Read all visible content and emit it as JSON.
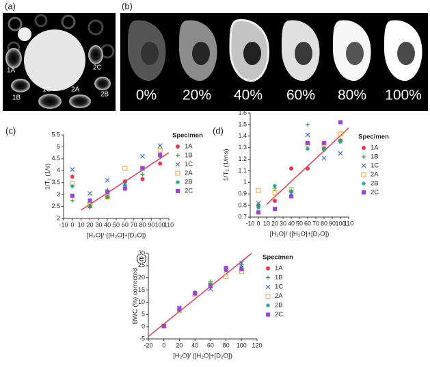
{
  "panels": {
    "a": {
      "label": "(a)",
      "specimens": [
        "1A",
        "1B",
        "1C",
        "2A",
        "2B",
        "2C"
      ]
    },
    "b": {
      "label": "(b)",
      "concentrations": [
        "0%",
        "20%",
        "40%",
        "60%",
        "80%",
        "100%"
      ]
    }
  },
  "chart_data": [
    {
      "type": "scatter",
      "label": "(c)",
      "y_label": "1/T₁ (1/s)",
      "x_label": "[H₂O]/ ([H₂O]+[D₂O])",
      "legend_title": "Specimen",
      "x": [
        0,
        20,
        40,
        60,
        80,
        100
      ],
      "xlim": [
        -10,
        110
      ],
      "xticks": [
        -10,
        0,
        10,
        20,
        30,
        40,
        50,
        60,
        70,
        80,
        90,
        100,
        110
      ],
      "ylim": [
        2,
        5.5
      ],
      "yticks": [
        2,
        2.5,
        3,
        3.5,
        4,
        4.5,
        5,
        5.5
      ],
      "series": [
        {
          "name": "1A",
          "color": "#e8384f",
          "marker": "circle",
          "values": [
            3.75,
            2.5,
            2.9,
            3.55,
            3.65,
            4.3
          ]
        },
        {
          "name": "1B",
          "color": "#2e9e3e",
          "marker": "plus",
          "values": [
            2.75,
            2.45,
            3.2,
            3.3,
            3.85,
            4.7
          ]
        },
        {
          "name": "1C",
          "color": "#3b6fd8",
          "marker": "cross",
          "values": [
            4.05,
            3.05,
            3.6,
            3.45,
            4.6,
            5.05
          ]
        },
        {
          "name": "2A",
          "color": "#f0a030",
          "marker": "open-square",
          "values": [
            3.45,
            2.6,
            2.9,
            4.1,
            4.1,
            4.85
          ]
        },
        {
          "name": "2B",
          "color": "#1aa88c",
          "marker": "asterisk",
          "values": [
            3.35,
            2.55,
            2.9,
            3.4,
            4.1,
            4.6
          ]
        },
        {
          "name": "2C",
          "color": "#a040e0",
          "marker": "square",
          "values": [
            2.95,
            2.75,
            3.1,
            3.25,
            4.1,
            4.65
          ]
        }
      ],
      "fit": {
        "color": "#e8384f",
        "x": [
          10,
          110
        ],
        "y": [
          2.35,
          4.75
        ]
      }
    },
    {
      "type": "scatter",
      "label": "(d)",
      "y_label": "1/T₂ (1/ms)",
      "x_label": "[H₂O]/ ([H₂O]+[D₂O])",
      "legend_title": "Specimen",
      "x": [
        0,
        20,
        40,
        60,
        80,
        100
      ],
      "xlim": [
        -10,
        110
      ],
      "xticks": [
        -10,
        0,
        10,
        20,
        30,
        40,
        50,
        60,
        70,
        80,
        90,
        100,
        110
      ],
      "ylim": [
        0.7,
        1.6
      ],
      "yticks": [
        0.7,
        0.8,
        0.9,
        1,
        1.1,
        1.2,
        1.3,
        1.4,
        1.5,
        1.6
      ],
      "series": [
        {
          "name": "1A",
          "color": "#e8384f",
          "marker": "circle",
          "values": [
            0.8,
            0.84,
            1.12,
            1.12,
            1.29,
            1.36
          ]
        },
        {
          "name": "1B",
          "color": "#2e9e3e",
          "marker": "plus",
          "values": [
            0.8,
            0.95,
            0.93,
            1.5,
            1.3,
            1.37
          ]
        },
        {
          "name": "1C",
          "color": "#3b6fd8",
          "marker": "cross",
          "values": [
            0.82,
            0.77,
            0.9,
            1.41,
            1.21,
            1.25
          ]
        },
        {
          "name": "2A",
          "color": "#f0a030",
          "marker": "open-square",
          "values": [
            0.93,
            0.91,
            0.94,
            1.33,
            1.33,
            1.42
          ]
        },
        {
          "name": "2B",
          "color": "#1aa88c",
          "marker": "asterisk",
          "values": [
            0.78,
            0.97,
            0.92,
            1.29,
            1.28,
            1.35
          ]
        },
        {
          "name": "2C",
          "color": "#a040e0",
          "marker": "square",
          "values": [
            0.74,
            0.77,
            0.88,
            1.34,
            1.34,
            1.52
          ]
        }
      ],
      "fit": {
        "color": "#e8384f",
        "x": [
          10,
          110
        ],
        "y": [
          0.81,
          1.47
        ]
      }
    },
    {
      "type": "scatter",
      "label": "(e)",
      "y_label": "BWC (%) corrected",
      "x_label": "[H₂O]/ ([H₂O]+[D₂O])",
      "legend_title": "Specimen",
      "x": [
        0,
        20,
        40,
        60,
        80,
        100
      ],
      "xlim": [
        -20,
        120
      ],
      "xticks": [
        -20,
        0,
        20,
        40,
        60,
        80,
        100,
        120
      ],
      "ylim": [
        -5,
        30
      ],
      "yticks": [
        -5,
        0,
        5,
        10,
        15,
        20,
        25,
        30
      ],
      "series": [
        {
          "name": "1A",
          "color": "#e8384f",
          "marker": "circle",
          "values": [
            0.3,
            6.8,
            13.5,
            17,
            23.2,
            24
          ]
        },
        {
          "name": "1B",
          "color": "#2e9e3e",
          "marker": "plus",
          "values": [
            0.3,
            7.2,
            14,
            18.5,
            23.5,
            25.5
          ]
        },
        {
          "name": "1C",
          "color": "#3b6fd8",
          "marker": "cross",
          "values": [
            0.3,
            7.8,
            13.5,
            15.5,
            23,
            26
          ]
        },
        {
          "name": "2A",
          "color": "#f0a030",
          "marker": "open-square",
          "values": [
            0.3,
            6.5,
            13,
            17.5,
            20.5,
            22.5
          ]
        },
        {
          "name": "2B",
          "color": "#1aa88c",
          "marker": "asterisk",
          "values": [
            0.3,
            7,
            13.5,
            17.5,
            24,
            24.5
          ]
        },
        {
          "name": "2C",
          "color": "#a040e0",
          "marker": "square",
          "values": [
            0.3,
            7.5,
            13.8,
            16.5,
            24,
            23.5
          ]
        }
      ],
      "fit": {
        "color": "#e8384f",
        "x": [
          -20,
          113
        ],
        "y": [
          -4,
          30
        ]
      }
    }
  ]
}
